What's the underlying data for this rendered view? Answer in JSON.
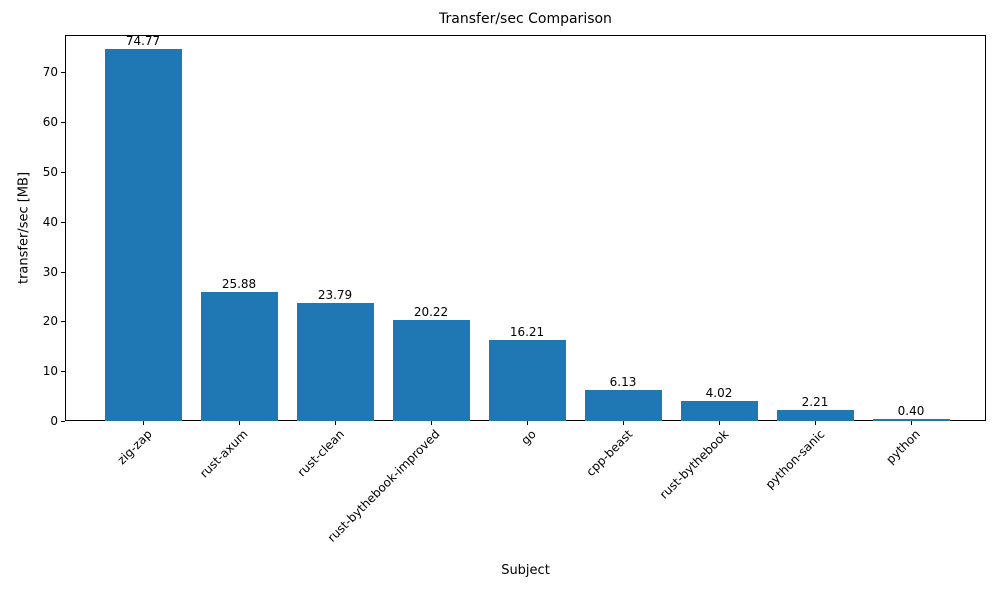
{
  "chart_data": {
    "type": "bar",
    "title": "Transfer/sec Comparison",
    "xlabel": "Subject",
    "ylabel": "transfer/sec [MB]",
    "categories": [
      "zig-zap",
      "rust-axum",
      "rust-clean",
      "rust-bythebook-improved",
      "go",
      "cpp-beast",
      "rust-bythebook",
      "python-sanic",
      "python"
    ],
    "values": [
      74.77,
      25.88,
      23.79,
      20.22,
      16.21,
      6.13,
      4.02,
      2.21,
      0.4
    ],
    "value_labels": [
      "74.77",
      "25.88",
      "23.79",
      "20.22",
      "16.21",
      "6.13",
      "4.02",
      "2.21",
      "0.40"
    ],
    "bar_color": "#1f77b4",
    "yticks": [
      0,
      10,
      20,
      30,
      40,
      50,
      60,
      70
    ],
    "ylim": [
      0,
      77.5
    ],
    "grid": false,
    "legend": null,
    "xtick_rotation": 45
  }
}
